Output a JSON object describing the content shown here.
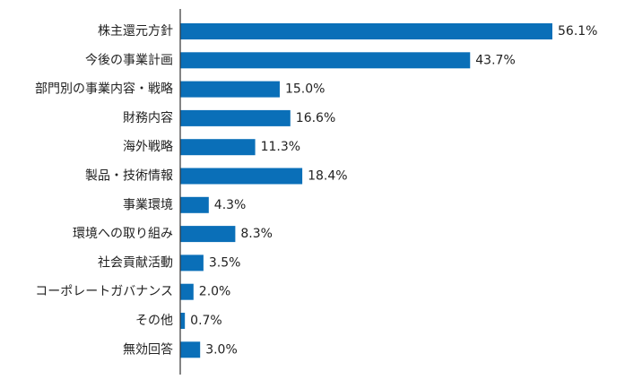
{
  "chart_data": {
    "type": "bar",
    "orientation": "horizontal",
    "categories": [
      "株主還元方針",
      "今後の事業計画",
      "部門別の事業内容・戦略",
      "財務内容",
      "海外戦略",
      "製品・技術情報",
      "事業環境",
      "環境への取り組み",
      "社会貢献活動",
      "コーポレートガバナンス",
      "その他",
      "無効回答"
    ],
    "values": [
      56.1,
      43.7,
      15.0,
      16.6,
      11.3,
      18.4,
      4.3,
      8.3,
      3.5,
      2.0,
      0.7,
      3.0
    ],
    "value_labels": [
      "56.1%",
      "43.7%",
      "15.0%",
      "16.6%",
      "11.3%",
      "18.4%",
      "4.3%",
      "8.3%",
      "3.5%",
      "2.0%",
      "0.7%",
      "3.0%"
    ],
    "unit": "%",
    "bar_color": "#0a6fb8",
    "axis_color": "#333333",
    "grid": false,
    "legend": "none"
  }
}
